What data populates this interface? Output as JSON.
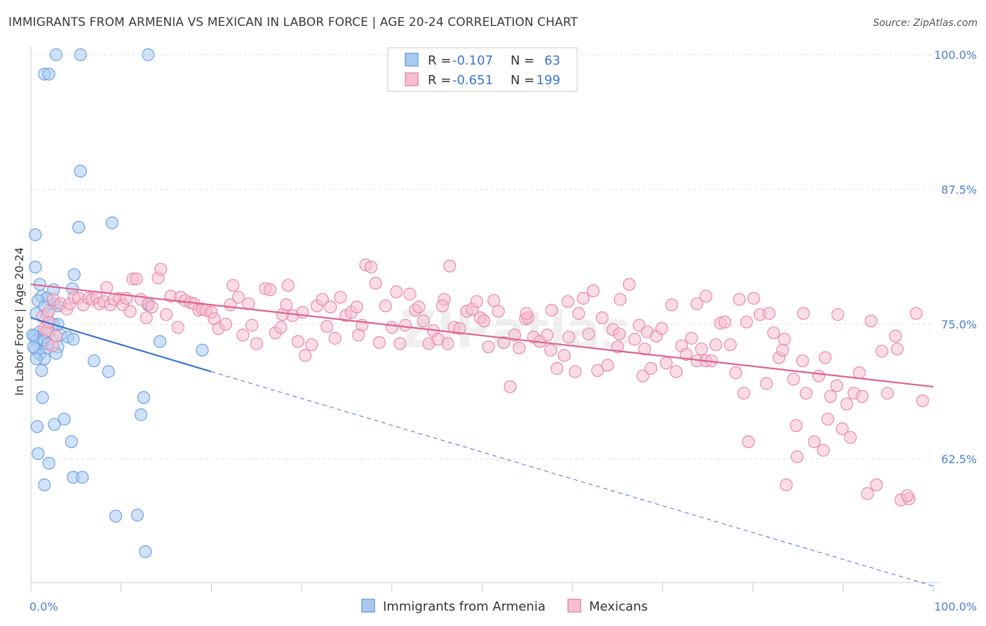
{
  "title": "IMMIGRANTS FROM ARMENIA VS MEXICAN IN LABOR FORCE | AGE 20-24 CORRELATION CHART",
  "source": "Source: ZipAtlas.com",
  "watermark": "ZIPatlas",
  "chart_data": {
    "type": "scatter",
    "title": "IMMIGRANTS FROM ARMENIA VS MEXICAN IN LABOR FORCE | AGE 20-24 CORRELATION CHART",
    "xlabel": "",
    "ylabel": "In Labor Force | Age 20-24",
    "xlim": [
      0,
      100
    ],
    "ylim": [
      51.5,
      102
    ],
    "x_tick_labels": [
      "0.0%",
      "100.0%"
    ],
    "y_ticks": [
      62.5,
      75.0,
      87.5,
      100.0
    ],
    "y_tick_labels": [
      "62.5%",
      "75.0%",
      "87.5%",
      "100.0%"
    ],
    "grid": true,
    "legend_placement": "top-center",
    "legend": {
      "rows": [
        {
          "r_label": "R =",
          "r_value": "-0.107",
          "n_label": "N =",
          "n_value": "63"
        },
        {
          "r_label": "R =",
          "r_value": "-0.651",
          "n_label": "N =",
          "n_value": "199"
        }
      ]
    },
    "series": [
      {
        "name": "Immigrants from Armenia",
        "color": "#6fa0e0",
        "fill": "#aacaf2",
        "trend": {
          "x": [
            0,
            20
          ],
          "y": [
            75.6,
            70.6
          ],
          "color": "#3a74d0"
        },
        "trend_ext": {
          "x": [
            20,
            100
          ],
          "y": [
            70.6,
            50.7
          ],
          "color": "#3a74d0"
        },
        "points": [
          [
            2.8,
            100
          ],
          [
            5.5,
            100
          ],
          [
            13,
            100
          ],
          [
            1.5,
            98.2
          ],
          [
            2,
            98.2
          ],
          [
            5.5,
            89.2
          ],
          [
            5.3,
            84
          ],
          [
            9,
            84.4
          ],
          [
            0.5,
            83.3
          ],
          [
            0.5,
            80.3
          ],
          [
            4.8,
            79.6
          ],
          [
            1,
            78.7
          ],
          [
            2.5,
            78.2
          ],
          [
            4.6,
            78.3
          ],
          [
            1.2,
            77.6
          ],
          [
            1.8,
            77.4
          ],
          [
            0.8,
            77.2
          ],
          [
            1.5,
            76.6
          ],
          [
            2.6,
            76.9
          ],
          [
            3,
            76.7
          ],
          [
            13,
            76.8
          ],
          [
            0.6,
            76
          ],
          [
            1.8,
            75.9
          ],
          [
            2.5,
            75
          ],
          [
            3,
            75
          ],
          [
            1,
            74.3
          ],
          [
            1.9,
            74.1
          ],
          [
            3.3,
            74
          ],
          [
            4.1,
            73.8
          ],
          [
            0.4,
            73.9
          ],
          [
            0.6,
            73.5
          ],
          [
            1.5,
            73.5
          ],
          [
            4.7,
            73.6
          ],
          [
            14.3,
            73.4
          ],
          [
            0.5,
            72.7
          ],
          [
            3,
            72.9
          ],
          [
            1.8,
            72.8
          ],
          [
            1,
            72.2
          ],
          [
            2.8,
            72.3
          ],
          [
            19,
            72.6
          ],
          [
            1.5,
            71.8
          ],
          [
            0.6,
            71.8
          ],
          [
            7,
            71.6
          ],
          [
            1.2,
            70.7
          ],
          [
            8.6,
            70.6
          ],
          [
            1.3,
            68.2
          ],
          [
            12.5,
            68.2
          ],
          [
            12.2,
            66.6
          ],
          [
            3.7,
            66.2
          ],
          [
            2.6,
            65.7
          ],
          [
            0.7,
            65.5
          ],
          [
            4.5,
            64.1
          ],
          [
            0.8,
            63
          ],
          [
            2,
            62.1
          ],
          [
            1.5,
            60.1
          ],
          [
            4.7,
            60.8
          ],
          [
            5.7,
            60.8
          ],
          [
            9.4,
            57.2
          ],
          [
            11.8,
            57.3
          ],
          [
            12.7,
            53.9
          ],
          [
            0.2,
            74
          ],
          [
            0.3,
            72.9
          ],
          [
            1.9,
            73.2
          ]
        ]
      },
      {
        "name": "Mexicans",
        "color": "#e88aaa",
        "fill": "#f6bfd0",
        "trend": {
          "x": [
            0,
            100
          ],
          "y": [
            78.7,
            69.2
          ],
          "color": "#e06090"
        },
        "points": [
          [
            1.3,
            75.7
          ],
          [
            1.5,
            74.6
          ],
          [
            1.8,
            74.4
          ],
          [
            2,
            75.2
          ],
          [
            2.4,
            73
          ],
          [
            2.8,
            73.9
          ],
          [
            2,
            76.2
          ],
          [
            2.5,
            77.3
          ],
          [
            3.3,
            76.9
          ],
          [
            4,
            76.4
          ],
          [
            4.3,
            76.9
          ],
          [
            4.8,
            77.5
          ],
          [
            5.3,
            77.4
          ],
          [
            5.8,
            76.8
          ],
          [
            6.4,
            77.4
          ],
          [
            6.8,
            77.3
          ],
          [
            7.3,
            77.5
          ],
          [
            7.6,
            76.9
          ],
          [
            8.1,
            77.1
          ],
          [
            8.4,
            78.4
          ],
          [
            8.8,
            76.8
          ],
          [
            9.2,
            77.3
          ],
          [
            9.8,
            77.4
          ],
          [
            10.2,
            76.8
          ],
          [
            10.6,
            77.4
          ],
          [
            11,
            76.2
          ],
          [
            11.3,
            79.2
          ],
          [
            11.7,
            79.2
          ],
          [
            12.2,
            77.3
          ],
          [
            12.8,
            75.6
          ],
          [
            13,
            76.9
          ],
          [
            13.4,
            76.6
          ],
          [
            14.1,
            79.3
          ],
          [
            14.4,
            80.1
          ],
          [
            15,
            75.9
          ],
          [
            15.5,
            77.6
          ],
          [
            16.3,
            74.7
          ],
          [
            16.6,
            77.5
          ],
          [
            17.1,
            77.2
          ],
          [
            17.7,
            77
          ],
          [
            18.1,
            76.9
          ],
          [
            18.6,
            76.3
          ],
          [
            19,
            76.4
          ],
          [
            19.4,
            76.3
          ],
          [
            20,
            76.1
          ],
          [
            20.3,
            75.5
          ],
          [
            20.8,
            74.6
          ],
          [
            21.6,
            75
          ],
          [
            22.1,
            76.8
          ],
          [
            22.4,
            78.6
          ],
          [
            23,
            77.5
          ],
          [
            23.5,
            74
          ],
          [
            24.1,
            76.9
          ],
          [
            24.5,
            74.9
          ],
          [
            25,
            73.2
          ],
          [
            26,
            78.3
          ],
          [
            26.5,
            78.2
          ],
          [
            27.1,
            74.2
          ],
          [
            27.9,
            75.9
          ],
          [
            28.3,
            76.8
          ],
          [
            28.5,
            78.6
          ],
          [
            29,
            75.8
          ],
          [
            29.6,
            73.4
          ],
          [
            30.1,
            76.1
          ],
          [
            30.4,
            72.1
          ],
          [
            31.1,
            73.1
          ],
          [
            31.7,
            76.7
          ],
          [
            32.3,
            77.3
          ],
          [
            32.8,
            74.8
          ],
          [
            33.2,
            76.6
          ],
          [
            33.7,
            73.7
          ],
          [
            34.3,
            77.5
          ],
          [
            34.9,
            75.8
          ],
          [
            35.5,
            76.1
          ],
          [
            36.1,
            76.6
          ],
          [
            36.7,
            74.9
          ],
          [
            37.1,
            80.5
          ],
          [
            37.7,
            80.3
          ],
          [
            38.2,
            78.8
          ],
          [
            38.6,
            73.3
          ],
          [
            39.3,
            76.7
          ],
          [
            40,
            74.7
          ],
          [
            40.5,
            78
          ],
          [
            40.9,
            73.2
          ],
          [
            41.5,
            74.9
          ],
          [
            42,
            77.8
          ],
          [
            42.6,
            76.3
          ],
          [
            43,
            76.6
          ],
          [
            43.5,
            75.3
          ],
          [
            44.1,
            73.2
          ],
          [
            44.6,
            74.4
          ],
          [
            45.1,
            73.6
          ],
          [
            45.8,
            77.3
          ],
          [
            46.2,
            73.2
          ],
          [
            46.9,
            74.7
          ],
          [
            47.5,
            74.6
          ],
          [
            48.3,
            76.2
          ],
          [
            48.9,
            76.4
          ],
          [
            49.4,
            77.1
          ],
          [
            49.8,
            75.6
          ],
          [
            50.2,
            75.3
          ],
          [
            50.7,
            72.9
          ],
          [
            51.3,
            77.2
          ],
          [
            51.8,
            76.2
          ],
          [
            52.4,
            73.3
          ],
          [
            53.1,
            69.2
          ],
          [
            53.6,
            74
          ],
          [
            54.1,
            72.8
          ],
          [
            54.8,
            75.5
          ],
          [
            55.1,
            75.6
          ],
          [
            55.7,
            73.8
          ],
          [
            56.4,
            73.4
          ],
          [
            57.2,
            74
          ],
          [
            57.6,
            72.6
          ],
          [
            58.3,
            70.9
          ],
          [
            59.1,
            72.1
          ],
          [
            59.6,
            73.8
          ],
          [
            60.3,
            70.6
          ],
          [
            60.7,
            76
          ],
          [
            61.2,
            77.4
          ],
          [
            61.8,
            74.1
          ],
          [
            62.3,
            78.1
          ],
          [
            62.8,
            70.7
          ],
          [
            63.3,
            75.6
          ],
          [
            63.9,
            71.2
          ],
          [
            64.5,
            74.5
          ],
          [
            65,
            72.9
          ],
          [
            65.2,
            74.1
          ],
          [
            66.3,
            78.7
          ],
          [
            66.9,
            73.6
          ],
          [
            67.4,
            74.9
          ],
          [
            67.8,
            70.2
          ],
          [
            68.3,
            74.3
          ],
          [
            68.7,
            70.9
          ],
          [
            69.3,
            73.9
          ],
          [
            69.9,
            74.6
          ],
          [
            70.4,
            71.4
          ],
          [
            71,
            76.8
          ],
          [
            71.5,
            70.6
          ],
          [
            72.1,
            73
          ],
          [
            72.6,
            72.2
          ],
          [
            73.2,
            73.7
          ],
          [
            73.8,
            71.6
          ],
          [
            74.3,
            72.7
          ],
          [
            74.8,
            71.6
          ],
          [
            75.4,
            71.6
          ],
          [
            75.9,
            73.1
          ],
          [
            76.4,
            75.1
          ],
          [
            76.9,
            75.2
          ],
          [
            77.5,
            73.1
          ],
          [
            78.1,
            70.5
          ],
          [
            78.5,
            77.3
          ],
          [
            79,
            68.6
          ],
          [
            79.5,
            64.1
          ],
          [
            80.1,
            77.4
          ],
          [
            80.8,
            75.9
          ],
          [
            81.5,
            69.5
          ],
          [
            82.3,
            74.2
          ],
          [
            82.9,
            71.9
          ],
          [
            83.3,
            72.6
          ],
          [
            84.5,
            69.9
          ],
          [
            84.8,
            65.6
          ],
          [
            84.9,
            62.7
          ],
          [
            85.5,
            71.6
          ],
          [
            85.9,
            68.6
          ],
          [
            86.8,
            64.1
          ],
          [
            87.3,
            70.2
          ],
          [
            88,
            71.9
          ],
          [
            88.6,
            68.3
          ],
          [
            89.3,
            69.3
          ],
          [
            89.9,
            65.3
          ],
          [
            90.4,
            67.6
          ],
          [
            90.8,
            64.5
          ],
          [
            91.2,
            68.6
          ],
          [
            91.8,
            70.5
          ],
          [
            92.1,
            68.3
          ],
          [
            92.7,
            59.3
          ],
          [
            93.1,
            75.3
          ],
          [
            93.7,
            60.1
          ],
          [
            94.3,
            72.5
          ],
          [
            94.9,
            68.6
          ],
          [
            95.8,
            73.9
          ],
          [
            96.4,
            58.7
          ],
          [
            97.3,
            58.8
          ],
          [
            98.1,
            76
          ],
          [
            98.8,
            67.9
          ],
          [
            96,
            72.7
          ],
          [
            88.3,
            66.2
          ],
          [
            87.8,
            63.3
          ],
          [
            73.8,
            76.9
          ],
          [
            74.8,
            77.6
          ],
          [
            81.8,
            76
          ],
          [
            83.7,
            60.1
          ],
          [
            85.6,
            76
          ],
          [
            97.1,
            59.1
          ],
          [
            89.4,
            75.9
          ],
          [
            83.5,
            73.6
          ],
          [
            79.3,
            75.2
          ],
          [
            65.3,
            77.3
          ],
          [
            68,
            72.7
          ],
          [
            54.9,
            76
          ],
          [
            57.7,
            76.3
          ],
          [
            59.5,
            77.1
          ],
          [
            46.4,
            80.4
          ],
          [
            45.6,
            76.7
          ],
          [
            36.3,
            74
          ],
          [
            27.7,
            74.7
          ]
        ]
      }
    ]
  }
}
